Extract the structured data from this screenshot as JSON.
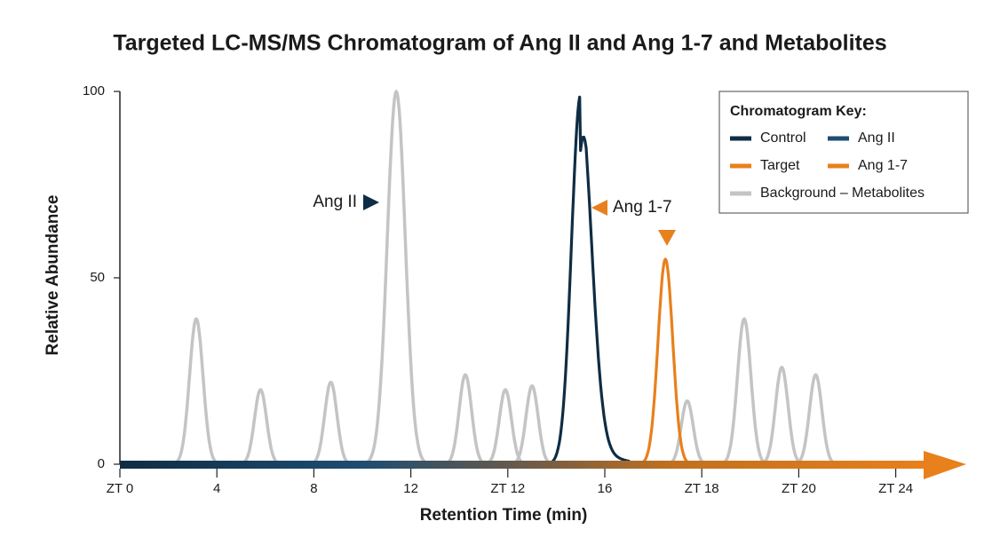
{
  "chart_data": {
    "type": "chromatogram",
    "title": "Targeted LC-MS/MS Chromatogram of Ang II and Ang 1-7 and Metabolites",
    "xlabel": "Retention Time (min)",
    "ylabel": "Relative Abundance",
    "xlim": [
      0,
      35
    ],
    "ylim": [
      0,
      100
    ],
    "xticks": [
      {
        "value": 0,
        "label": "ZT 0"
      },
      4,
      8,
      12,
      {
        "value": 16,
        "label": "ZT 12"
      },
      {
        "value": 20,
        "label": "16"
      },
      {
        "value": 24,
        "label": "ZT 18"
      },
      {
        "value": 28,
        "label": "ZT 20"
      },
      {
        "value": 32,
        "label": "ZT 24"
      }
    ],
    "yticks": [
      0,
      50,
      100
    ],
    "legend_title": "Chromatogram Key:",
    "legend": "upper right",
    "series": [
      {
        "name": "Control",
        "color": "#0f2d44",
        "x": [
          19.0
        ],
        "values": [
          99
        ]
      },
      {
        "name": "Ang II",
        "color": "#1e4d72",
        "x": [],
        "values": []
      },
      {
        "name": "Target",
        "color": "#e8801c",
        "x": [
          22.5
        ],
        "values": [
          55
        ]
      },
      {
        "name": "Ang 1-7",
        "color": "#e8801c",
        "x": [],
        "values": []
      },
      {
        "name": "Background – Metabolites",
        "color": "#c4c4c4",
        "x": [
          3.15,
          5.8,
          8.7,
          11.4,
          14.25,
          15.9,
          17.0,
          23.4,
          25.75,
          27.3,
          28.7
        ],
        "values": [
          39,
          20,
          22,
          100,
          24,
          20,
          21,
          17,
          39,
          26,
          24
        ]
      }
    ],
    "annotations": [
      "Ang II",
      "Ang 1-7"
    ]
  }
}
